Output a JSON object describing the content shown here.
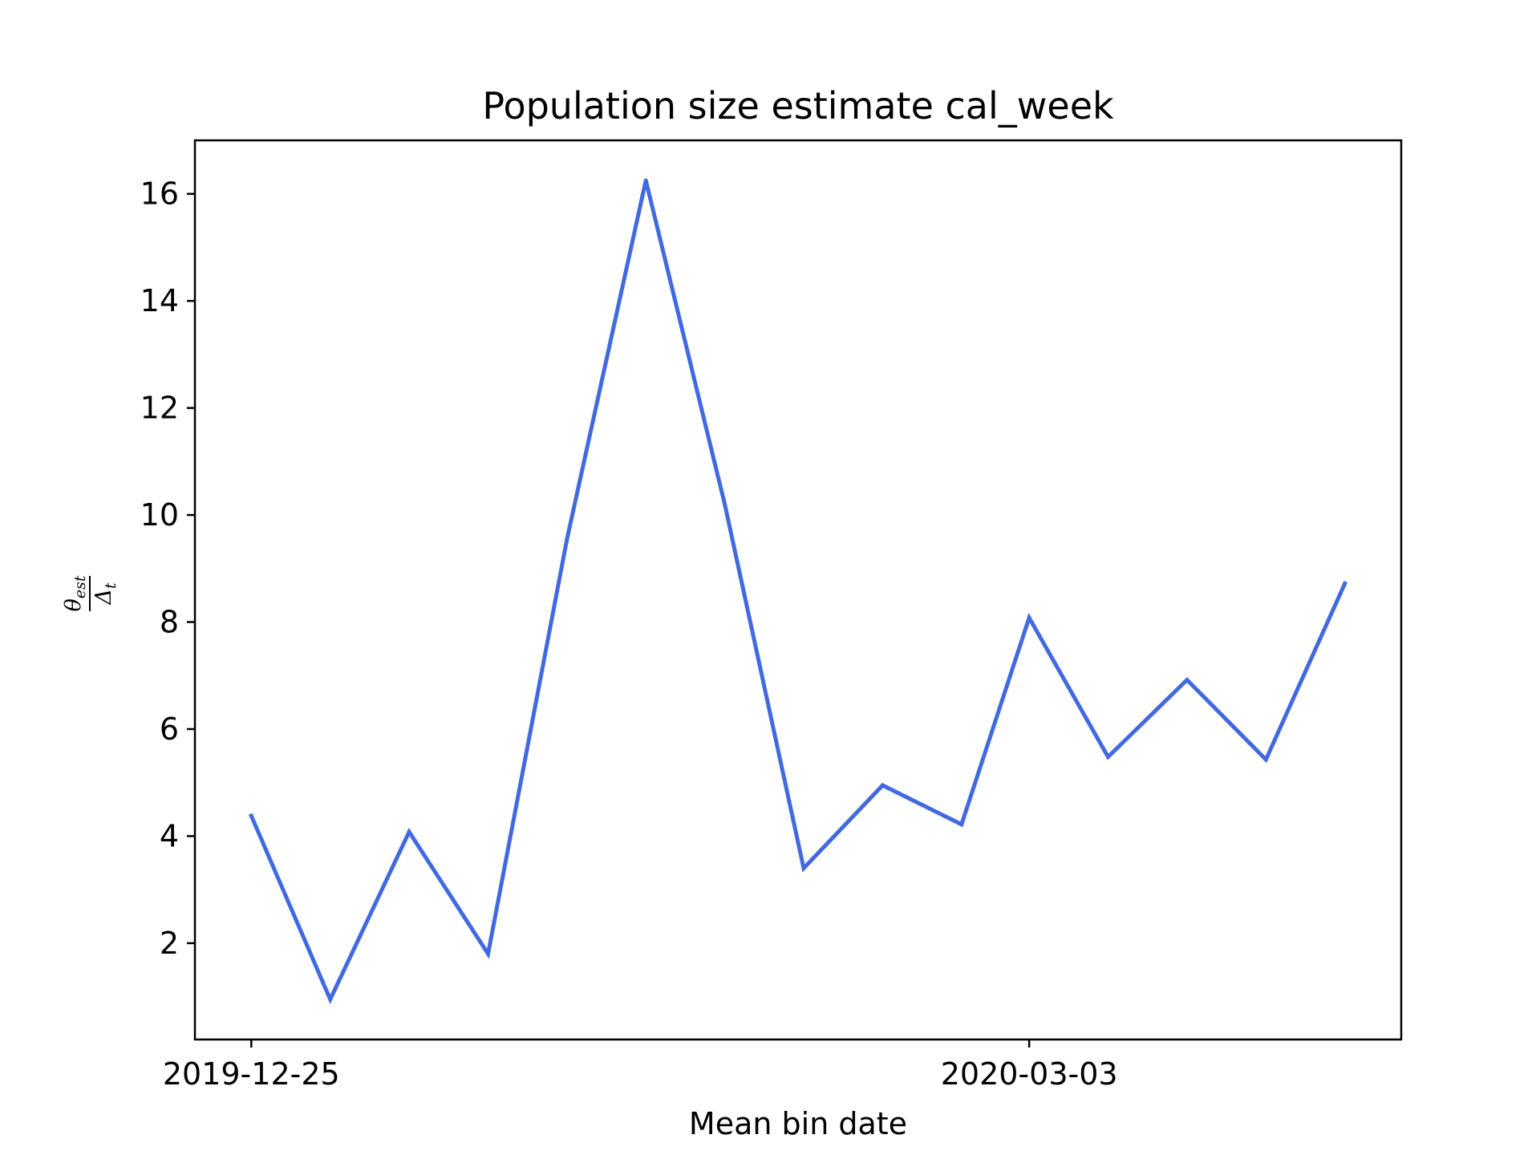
{
  "chart_data": {
    "type": "line",
    "title": "Population size estimate cal_week",
    "xlabel": "Mean bin date",
    "ylabel": {
      "numerator": "θ",
      "numerator_sub": "est",
      "denominator": "Δ",
      "denominator_sub": "t"
    },
    "x": [
      "2019-12-25",
      "2020-01-01",
      "2020-01-08",
      "2020-01-15",
      "2020-01-22",
      "2020-01-29",
      "2020-02-05",
      "2020-02-12",
      "2020-02-19",
      "2020-02-26",
      "2020-03-03",
      "2020-03-10",
      "2020-03-17",
      "2020-03-24",
      "2020-03-31"
    ],
    "series": [
      {
        "values": [
          4.38,
          0.95,
          4.08,
          1.8,
          9.55,
          16.25,
          10.2,
          3.4,
          4.95,
          4.22,
          8.08,
          5.48,
          6.92,
          5.43,
          8.72
        ]
      }
    ],
    "xticks": [
      "2019-12-25",
      "2020-03-03"
    ],
    "yticks": [
      2,
      4,
      6,
      8,
      10,
      12,
      14,
      16
    ],
    "ylim": [
      0.2,
      17.0
    ],
    "xlim": [
      "2019-12-20",
      "2020-04-05"
    ],
    "grid": false,
    "line_color": "#4169e1"
  }
}
